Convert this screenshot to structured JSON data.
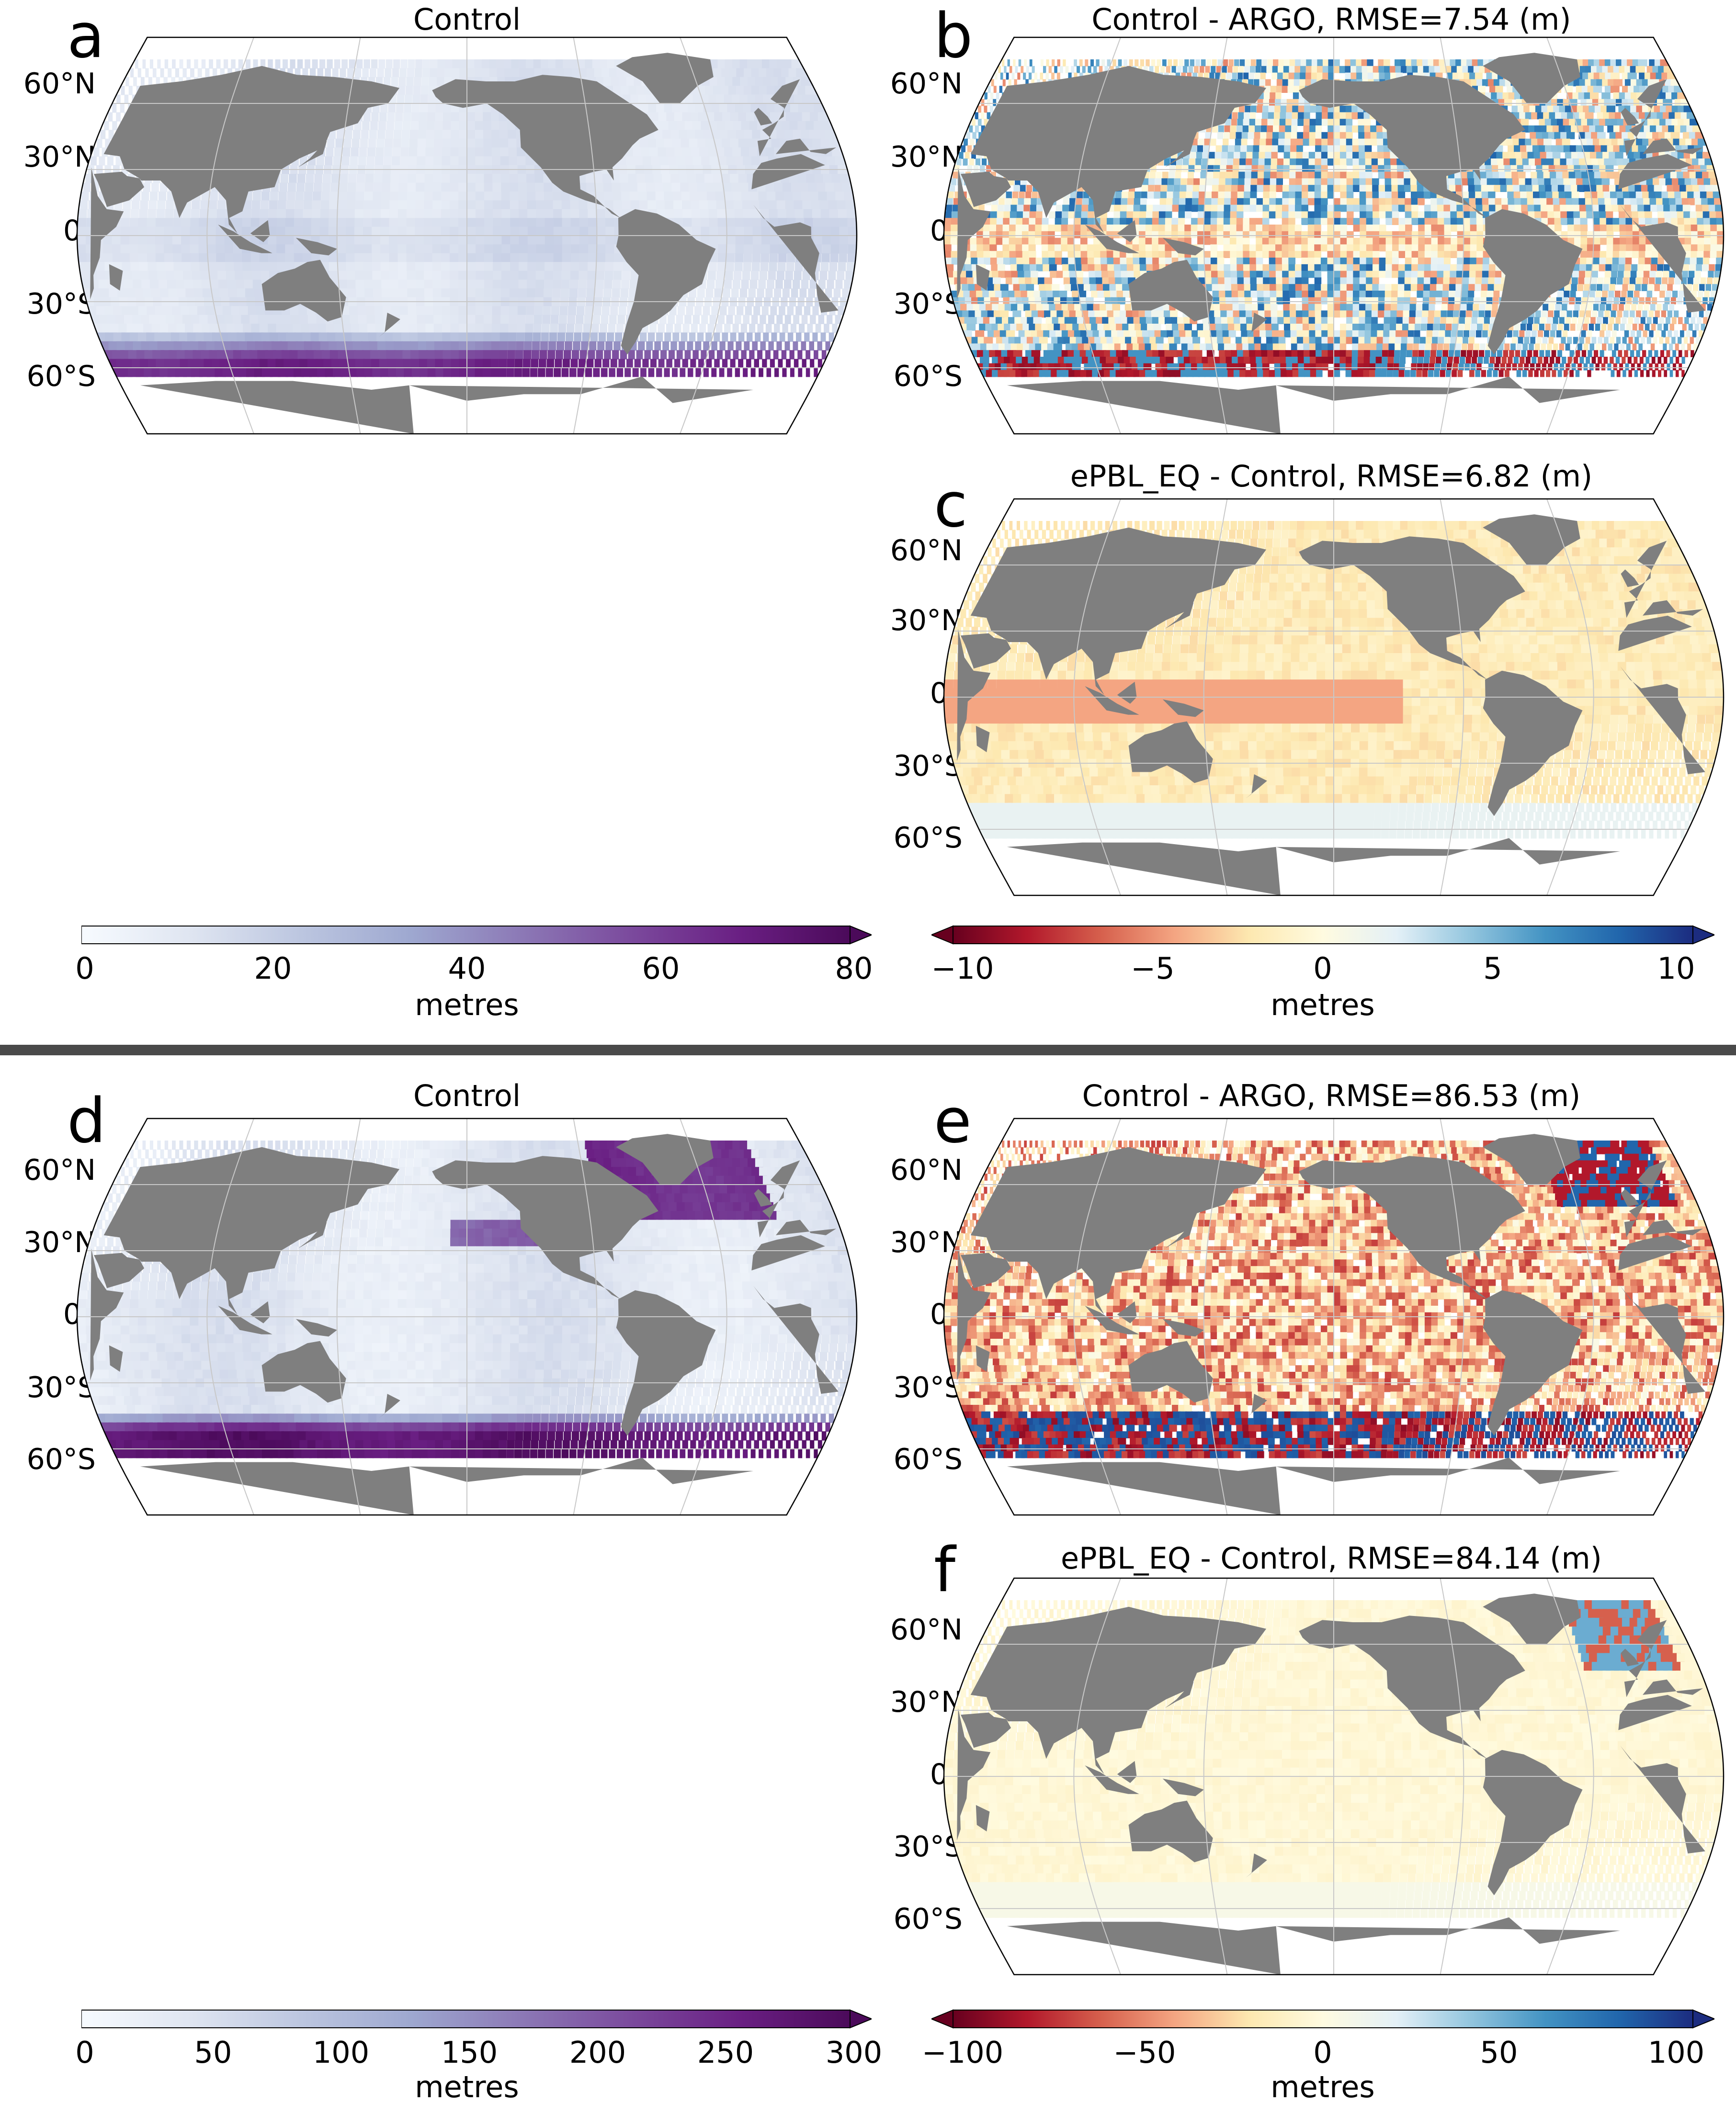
{
  "colors": {
    "land": "#7f7f7f",
    "ocean_nodata": "#ffffff",
    "grid": "#c8c8c8",
    "divider": "#4a4a4a",
    "dense_cmap": [
      "#f7fbff",
      "#dfe5f1",
      "#bcc6e0",
      "#9ea8d0",
      "#8c79b6",
      "#7b4a9d",
      "#6a1f83",
      "#4b0a5a"
    ],
    "balance_cmap": [
      "#67001f",
      "#b2182b",
      "#d6604d",
      "#f4a582",
      "#fde8b0",
      "#fffbe0",
      "#e3f0f7",
      "#92c5de",
      "#4393c3",
      "#2166ac",
      "#1c2c80"
    ]
  },
  "panels": {
    "a": {
      "letter": "a",
      "title": "Control",
      "lat_labels": [
        "60°N",
        "30°N",
        "0°",
        "30°S",
        "60°S"
      ]
    },
    "b": {
      "letter": "b",
      "title": "Control - ARGO, RMSE=7.54 (m)",
      "lat_labels": [
        "60°N",
        "30°N",
        "0°",
        "30°S",
        "60°S"
      ]
    },
    "c": {
      "letter": "c",
      "title": "ePBL_EQ - Control, RMSE=6.82 (m)",
      "lat_labels": [
        "60°N",
        "30°N",
        "0°",
        "30°S",
        "60°S"
      ]
    },
    "d": {
      "letter": "d",
      "title": "Control",
      "lat_labels": [
        "60°N",
        "30°N",
        "0°",
        "30°S",
        "60°S"
      ]
    },
    "e": {
      "letter": "e",
      "title": "Control - ARGO, RMSE=86.53 (m)",
      "lat_labels": [
        "60°N",
        "30°N",
        "0°",
        "30°S",
        "60°S"
      ]
    },
    "f": {
      "letter": "f",
      "title": "ePBL_EQ - Control, RMSE=84.14 (m)",
      "lat_labels": [
        "60°N",
        "30°N",
        "0°",
        "30°S",
        "60°S"
      ]
    }
  },
  "colorbars": {
    "top_left": {
      "label": "metres",
      "ticks": [
        "0",
        "20",
        "40",
        "60",
        "80"
      ]
    },
    "top_right": {
      "label": "metres",
      "ticks": [
        "−10",
        "−5",
        "0",
        "5",
        "10"
      ]
    },
    "bottom_left": {
      "label": "metres",
      "ticks": [
        "0",
        "50",
        "100",
        "150",
        "200",
        "250",
        "300"
      ]
    },
    "bottom_right": {
      "label": "metres",
      "ticks": [
        "−100",
        "−50",
        "0",
        "50",
        "100"
      ]
    }
  },
  "chart_data": [
    {
      "type": "heatmap",
      "panel": "a",
      "title": "Control",
      "projection": "Robinson",
      "colormap": "dense",
      "clim": [
        0,
        80
      ],
      "units": "metres",
      "extend": "max",
      "latitudes_labeled": [
        "60°N",
        "30°N",
        "0°",
        "30°S",
        "60°S"
      ]
    },
    {
      "type": "heatmap",
      "panel": "b",
      "title": "Control - ARGO, RMSE=7.54 (m)",
      "rmse": 7.54,
      "projection": "Robinson",
      "colormap": "balance",
      "clim": [
        -10,
        10
      ],
      "units": "metres",
      "extend": "both"
    },
    {
      "type": "heatmap",
      "panel": "c",
      "title": "ePBL_EQ - Control, RMSE=6.82 (m)",
      "rmse": 6.82,
      "projection": "Robinson",
      "colormap": "balance",
      "clim": [
        -10,
        10
      ],
      "units": "metres",
      "extend": "both"
    },
    {
      "type": "heatmap",
      "panel": "d",
      "title": "Control",
      "projection": "Robinson",
      "colormap": "dense",
      "clim": [
        0,
        300
      ],
      "units": "metres",
      "extend": "max"
    },
    {
      "type": "heatmap",
      "panel": "e",
      "title": "Control - ARGO, RMSE=86.53 (m)",
      "rmse": 86.53,
      "projection": "Robinson",
      "colormap": "balance",
      "clim": [
        -100,
        100
      ],
      "units": "metres",
      "extend": "both"
    },
    {
      "type": "heatmap",
      "panel": "f",
      "title": "ePBL_EQ - Control, RMSE=84.14 (m)",
      "rmse": 84.14,
      "projection": "Robinson",
      "colormap": "balance",
      "clim": [
        -100,
        100
      ],
      "units": "metres",
      "extend": "both"
    }
  ]
}
